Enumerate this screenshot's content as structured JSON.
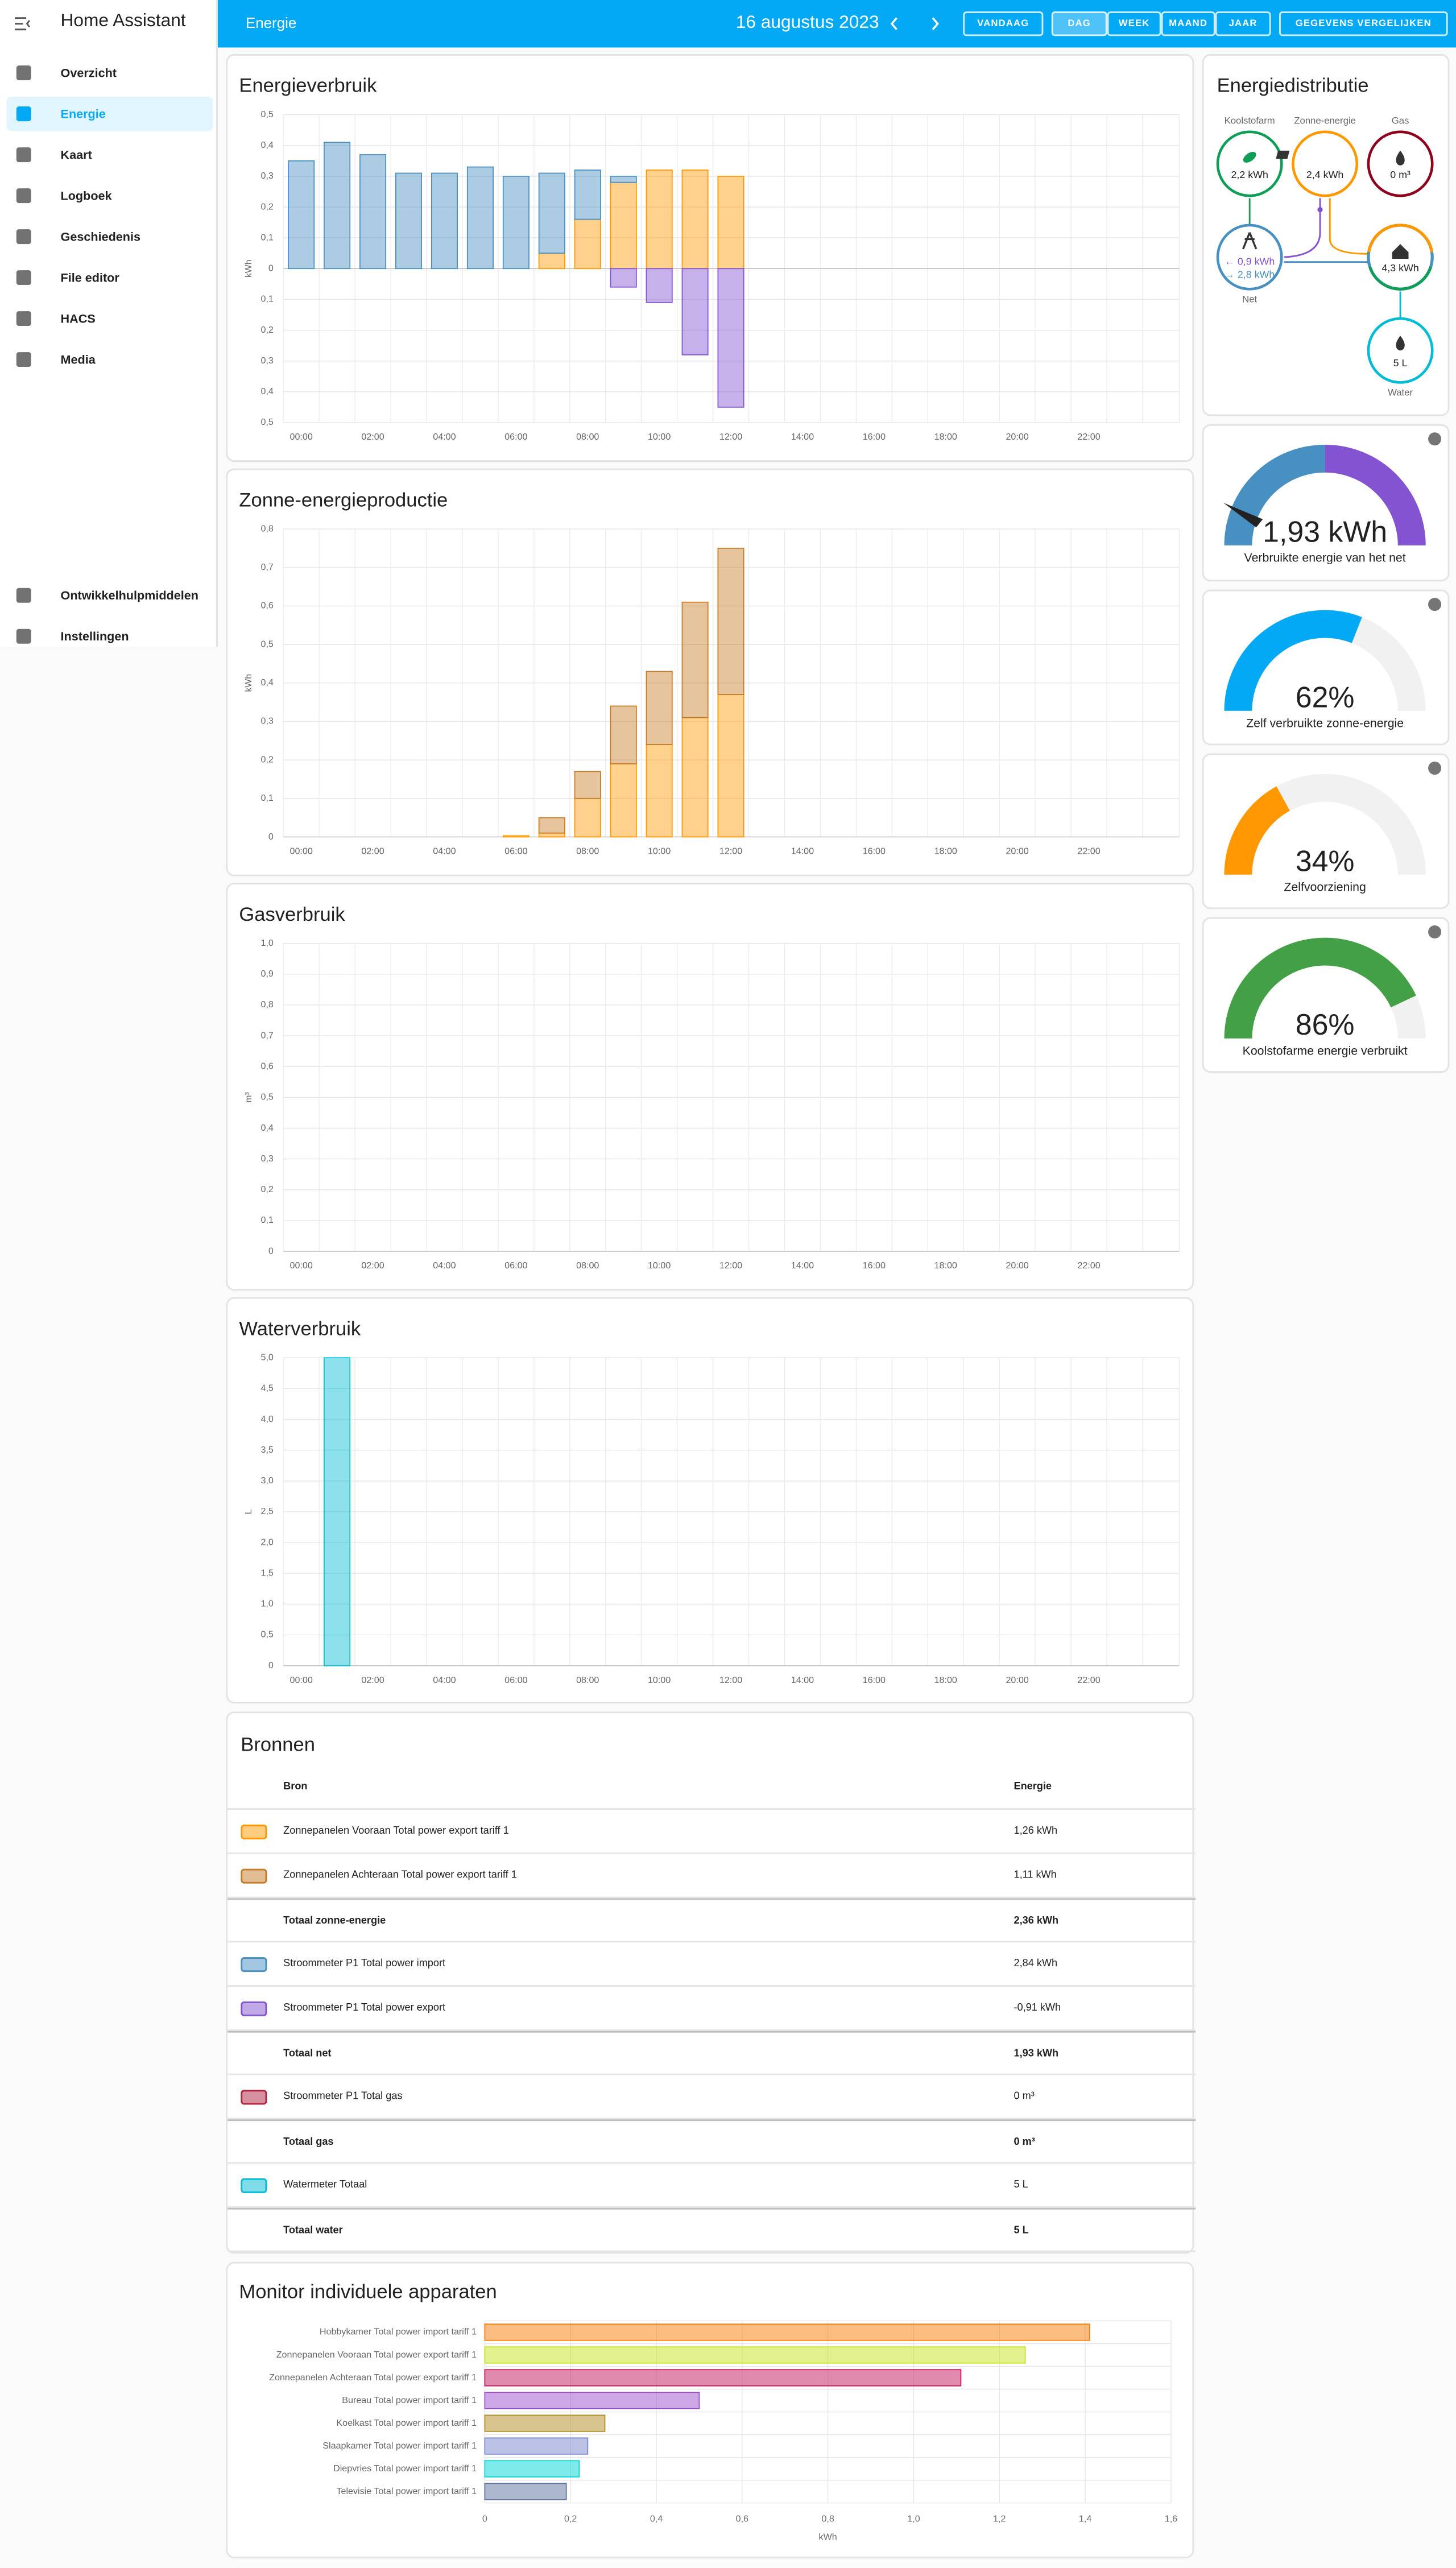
{
  "sidebar": {
    "title": "Home Assistant",
    "items": [
      "Overzicht",
      "Energie",
      "Kaart",
      "Logboek",
      "Geschiedenis",
      "File editor",
      "HACS",
      "Media"
    ],
    "bottom_items": [
      "Ontwikkelhulpmiddelen",
      "Instellingen"
    ]
  },
  "header": {
    "title": "Energie",
    "date": "16 augustus 2023",
    "buttons": [
      "VANDAAG",
      "DAG",
      "WEEK",
      "MAAND",
      "JAAR",
      "GEGEVENS VERGELIJKEN"
    ]
  },
  "charts": [
    {
      "type": "bar",
      "title": "Energieverbruik",
      "y_label": "kWh",
      "stacked": true,
      "grid": true,
      "categories": [
        "00:00",
        null,
        "02:00",
        null,
        "04:00",
        null,
        "06:00",
        null,
        "08:00",
        null,
        "10:00",
        null,
        "12:00",
        null,
        "14:00",
        null,
        "16:00",
        null,
        "18:00",
        null,
        "20:00",
        null,
        "22:00",
        null
      ],
      "series": [
        {
          "color": "#ff9800",
          "values": [
            null,
            null,
            null,
            null,
            null,
            null,
            null,
            0.05,
            0.16,
            0.28,
            0.32,
            0.32,
            0.3,
            null,
            null,
            null,
            null,
            null,
            null,
            null,
            null,
            null,
            null,
            null
          ]
        },
        {
          "color": "#488fc2",
          "values": [
            0.35,
            0.41,
            0.37,
            0.31,
            0.31,
            0.33,
            0.3,
            0.26,
            0.16,
            0.02,
            null,
            null,
            null,
            null,
            null,
            null,
            null,
            null,
            null,
            null,
            null,
            null,
            null,
            null
          ]
        },
        {
          "color": "#8353d1",
          "values": [
            null,
            null,
            null,
            null,
            null,
            null,
            null,
            null,
            null,
            -0.06,
            -0.11,
            -0.28,
            -0.45,
            null,
            null,
            null,
            null,
            null,
            null,
            null,
            null,
            null,
            null,
            null
          ]
        }
      ],
      "ylim": [
        -0.5,
        0.5
      ],
      "yticks": [
        {
          "value": -0.5,
          "label": "0,5"
        },
        {
          "value": -0.4,
          "label": "0,4"
        },
        {
          "value": -0.3,
          "label": "0,3"
        },
        {
          "value": -0.2,
          "label": "0,2"
        },
        {
          "value": -0.1,
          "label": "0,1"
        },
        0,
        {
          "value": 0.1,
          "label": "0,1"
        },
        {
          "value": 0.2,
          "label": "0,2"
        },
        {
          "value": 0.3,
          "label": "0,3"
        },
        {
          "value": 0.4,
          "label": "0,4"
        },
        {
          "value": 0.5,
          "label": "0,5"
        }
      ]
    },
    {
      "type": "bar",
      "title": "Zonne-energieproductie",
      "y_label": "kWh",
      "stacked": true,
      "grid": true,
      "categories": [
        "00:00",
        null,
        "02:00",
        null,
        "04:00",
        null,
        "06:00",
        null,
        "08:00",
        null,
        "10:00",
        null,
        "12:00",
        null,
        "14:00",
        null,
        "16:00",
        null,
        "18:00",
        null,
        "20:00",
        null,
        "22:00",
        null
      ],
      "series": [
        {
          "color": "#ff9800",
          "values": [
            null,
            null,
            null,
            null,
            null,
            null,
            0.003,
            0.01,
            0.1,
            0.19,
            0.24,
            0.31,
            0.37,
            null,
            null,
            null,
            null,
            null,
            null,
            null,
            null,
            null,
            null,
            null
          ]
        },
        {
          "color": "#c67c27",
          "values": [
            null,
            null,
            null,
            null,
            null,
            null,
            null,
            0.04,
            0.07,
            0.15,
            0.19,
            0.3,
            0.38,
            null,
            null,
            null,
            null,
            null,
            null,
            null,
            null,
            null,
            null,
            null
          ]
        }
      ],
      "ylim": [
        0,
        0.8
      ],
      "yticks": [
        0,
        {
          "value": 0.1,
          "label": "0,1"
        },
        {
          "value": 0.2,
          "label": "0,2"
        },
        {
          "value": 0.3,
          "label": "0,3"
        },
        {
          "value": 0.4,
          "label": "0,4"
        },
        {
          "value": 0.5,
          "label": "0,5"
        },
        {
          "value": 0.6,
          "label": "0,6"
        },
        {
          "value": 0.7,
          "label": "0,7"
        },
        {
          "value": 0.8,
          "label": "0,8"
        }
      ]
    },
    {
      "type": "bar",
      "title": "Gasverbruik",
      "y_label": "m³",
      "stacked": true,
      "grid": true,
      "categories": [
        "00:00",
        null,
        "02:00",
        null,
        "04:00",
        null,
        "06:00",
        null,
        "08:00",
        null,
        "10:00",
        null,
        "12:00",
        null,
        "14:00",
        null,
        "16:00",
        null,
        "18:00",
        null,
        "20:00",
        null,
        "22:00",
        null
      ],
      "series": [],
      "ylim": [
        0,
        1
      ],
      "yticks": [
        0,
        {
          "value": 0.1,
          "label": "0,1"
        },
        {
          "value": 0.2,
          "label": "0,2"
        },
        {
          "value": 0.3,
          "label": "0,3"
        },
        {
          "value": 0.4,
          "label": "0,4"
        },
        {
          "value": 0.5,
          "label": "0,5"
        },
        {
          "value": 0.6,
          "label": "0,6"
        },
        {
          "value": 0.7,
          "label": "0,7"
        },
        {
          "value": 0.8,
          "label": "0,8"
        },
        {
          "value": 0.9,
          "label": "0,9"
        },
        {
          "value": 1,
          "label": "1,0"
        }
      ]
    },
    {
      "type": "bar",
      "title": "Waterverbruik",
      "y_label": "L",
      "stacked": true,
      "grid": true,
      "categories": [
        "00:00",
        null,
        "02:00",
        null,
        "04:00",
        null,
        "06:00",
        null,
        "08:00",
        null,
        "10:00",
        null,
        "12:00",
        null,
        "14:00",
        null,
        "16:00",
        null,
        "18:00",
        null,
        "20:00",
        null,
        "22:00",
        null
      ],
      "series": [
        {
          "color": "#00bcd4",
          "values": [
            null,
            5,
            null,
            null,
            null,
            null,
            null,
            null,
            null,
            null,
            null,
            null,
            null,
            null,
            null,
            null,
            null,
            null,
            null,
            null,
            null,
            null,
            null,
            null
          ]
        }
      ],
      "ylim": [
        0,
        5
      ],
      "yticks": [
        0,
        {
          "value": 0.5,
          "label": "0,5"
        },
        {
          "value": 1,
          "label": "1,0"
        },
        {
          "value": 1.5,
          "label": "1,5"
        },
        {
          "value": 2,
          "label": "2,0"
        },
        {
          "value": 2.5,
          "label": "2,5"
        },
        {
          "value": 3,
          "label": "3,0"
        },
        {
          "value": 3.5,
          "label": "3,5"
        },
        {
          "value": 4,
          "label": "4,0"
        },
        {
          "value": 4.5,
          "label": "4,5"
        },
        {
          "value": 5,
          "label": "5,0"
        }
      ]
    }
  ],
  "distribution": {
    "title": "Energiedistributie",
    "low_carbon": {
      "label": "Koolstofarm",
      "value": "2,2 kWh",
      "color": "#0f9d58"
    },
    "solar": {
      "label": "Zonne-energie",
      "value": "2,4 kWh",
      "color": "#ff9800"
    },
    "gas": {
      "label": "Gas",
      "value": "0 m³",
      "color": "#8e021b"
    },
    "grid": {
      "label": "Net",
      "export": "← 0,9 kWh",
      "import": "→ 2,8 kWh",
      "color": "#488fc2",
      "export_color": "#8353d1"
    },
    "home": {
      "value": "4,3 kWh"
    },
    "water": {
      "label": "Water",
      "value": "5 L",
      "color": "#00bcd4"
    }
  },
  "gauges": [
    {
      "label": "1,93 kWh",
      "caption": "Verbruikte energie van het net",
      "colors": [
        "#488fc2",
        "#8353d1"
      ]
    },
    {
      "value": 62,
      "label": "62%",
      "caption": "Zelf verbruikte zonne-energie",
      "color": "#03a9f4"
    },
    {
      "value": 34,
      "label": "34%",
      "caption": "Zelfvoorziening",
      "color": "#ff9800"
    },
    {
      "value": 86,
      "label": "86%",
      "caption": "Koolstofarme energie verbruikt",
      "color": "#43a047"
    }
  ],
  "sources": {
    "title": "Bronnen",
    "header": [
      "Bron",
      "Energie"
    ],
    "rows": [
      {
        "color": "#ff9800",
        "name": "Zonnepanelen Vooraan Total power export tariff 1",
        "value": "1,26 kWh"
      },
      {
        "color": "#c67c27",
        "name": "Zonnepanelen Achteraan Total power export tariff 1",
        "value": "1,11 kWh"
      },
      {
        "name": "Totaal zonne-energie",
        "value": "2,36 kWh"
      },
      {
        "color": "#488fc2",
        "name": "Stroommeter P1 Total power import",
        "value": "2,84 kWh"
      },
      {
        "color": "#8353d1",
        "name": "Stroommeter P1 Total power export",
        "value": "-0,91 kWh"
      },
      {
        "name": "Totaal net",
        "value": "1,93 kWh"
      },
      {
        "color": "#b0223f",
        "name": "Stroommeter P1 Total gas",
        "value": "0 m³"
      },
      {
        "name": "Totaal gas",
        "value": "0 m³"
      },
      {
        "color": "#00bcd4",
        "name": "Watermeter Totaal",
        "value": "5 L"
      },
      {
        "name": "Totaal water",
        "value": "5 L"
      }
    ]
  },
  "devices_chart": {
    "type": "bar",
    "orientation": "horizontal",
    "title": "Monitor individuele apparaten",
    "x_label": "kWh",
    "grid": true,
    "categories": [
      "Hobbykamer Total power import tariff 1",
      "Zonnepanelen Vooraan Total power export tariff 1",
      "Zonnepanelen Achteraan Total power export tariff 1",
      "Bureau Total power import tariff 1",
      "Koelkast Total power import tariff 1",
      "Slaapkamer Total power import tariff 1",
      "Diepvries Total power import tariff 1",
      "Televisie Total power import tariff 1"
    ],
    "values": [
      1.41,
      1.26,
      1.11,
      0.5,
      0.28,
      0.24,
      0.22,
      0.19
    ],
    "colors": [
      "#f57c00",
      "#c6e41c",
      "#c2185b",
      "#9c4dcc",
      "#b08a1e",
      "#7986cb",
      "#00d5d5",
      "#5c6f9e"
    ],
    "xlim": [
      0,
      1.6
    ],
    "xticks": [
      0,
      {
        "value": 0.2,
        "label": "0,2"
      },
      {
        "value": 0.4,
        "label": "0,4"
      },
      {
        "value": 0.6,
        "label": "0,6"
      },
      {
        "value": 0.8,
        "label": "0,8"
      },
      {
        "value": 1,
        "label": "1,0"
      },
      {
        "value": 1.2,
        "label": "1,2"
      },
      {
        "value": 1.4,
        "label": "1,4"
      },
      {
        "value": 1.6,
        "label": "1,6"
      }
    ]
  }
}
